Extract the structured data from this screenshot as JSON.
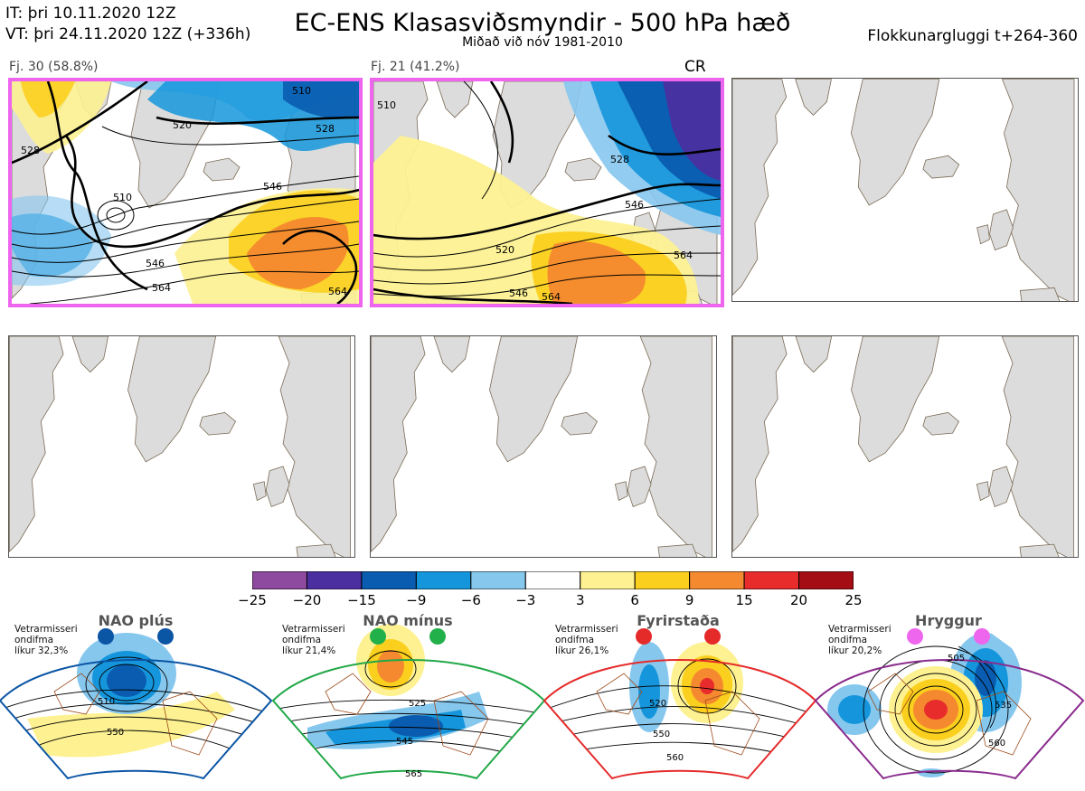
{
  "header": {
    "it_line": "IT: þri 10.11.2020 12Z",
    "vt_line": "VT: þri 24.11.2020 12Z  (+336h)",
    "title": "EC-ENS Klasasviðsmyndir - 500 hPa hæð",
    "subtitle": "Miðað við nóv 1981-2010",
    "window": "Flokkunargluggi t+264-360"
  },
  "panels": [
    {
      "label": "Fj. 30 (58.8%)",
      "marker": "",
      "contour_labels": [
        "510",
        "520",
        "528",
        "546",
        "546",
        "564",
        "528",
        "510",
        "564"
      ]
    },
    {
      "label": "Fj. 21 (41.2%)",
      "marker": "CR",
      "contour_labels": [
        "510",
        "520",
        "528",
        "546",
        "564",
        "546",
        "564"
      ]
    }
  ],
  "colorbar": {
    "ticks": [
      "−25",
      "−20",
      "−15",
      "−9",
      "−6",
      "−3",
      "3",
      "6",
      "9",
      "15",
      "20",
      "25"
    ],
    "colors": [
      "#8e4a9e",
      "#4b2fa0",
      "#0a5cb0",
      "#1596dc",
      "#86c7ee",
      "#ffffff",
      "#fdf191",
      "#fbcf1e",
      "#f4892f",
      "#e82c2c",
      "#a50d15"
    ]
  },
  "regimes": [
    {
      "name": "NAO plús",
      "note": [
        "Vetrarmisseri",
        "ondifma",
        "líkur 32,3%"
      ],
      "edge_color": "#0b55a5",
      "dot_color": "#0b55a5",
      "labels": [
        "510",
        "550"
      ]
    },
    {
      "name": "NAO mínus",
      "note": [
        "Vetrarmisseri",
        "ondifma",
        "líkur 21,4%"
      ],
      "edge_color": "#22a848",
      "dot_color": "#22b04a",
      "labels": [
        "525",
        "545",
        "565"
      ]
    },
    {
      "name": "Fyrirstaða",
      "note": [
        "Vetrarmisseri",
        "ondifma",
        "líkur 26,1%"
      ],
      "edge_color": "#e52a2a",
      "dot_color": "#e52a2a",
      "labels": [
        "520",
        "550",
        "560"
      ]
    },
    {
      "name": "Hryggur",
      "note": [
        "Vetrarmisseri",
        "ondifma",
        "líkur 20,2%"
      ],
      "edge_color": "#8a2c8e",
      "dot_color": "#ee66ee",
      "labels": [
        "505",
        "535",
        "560"
      ]
    }
  ]
}
